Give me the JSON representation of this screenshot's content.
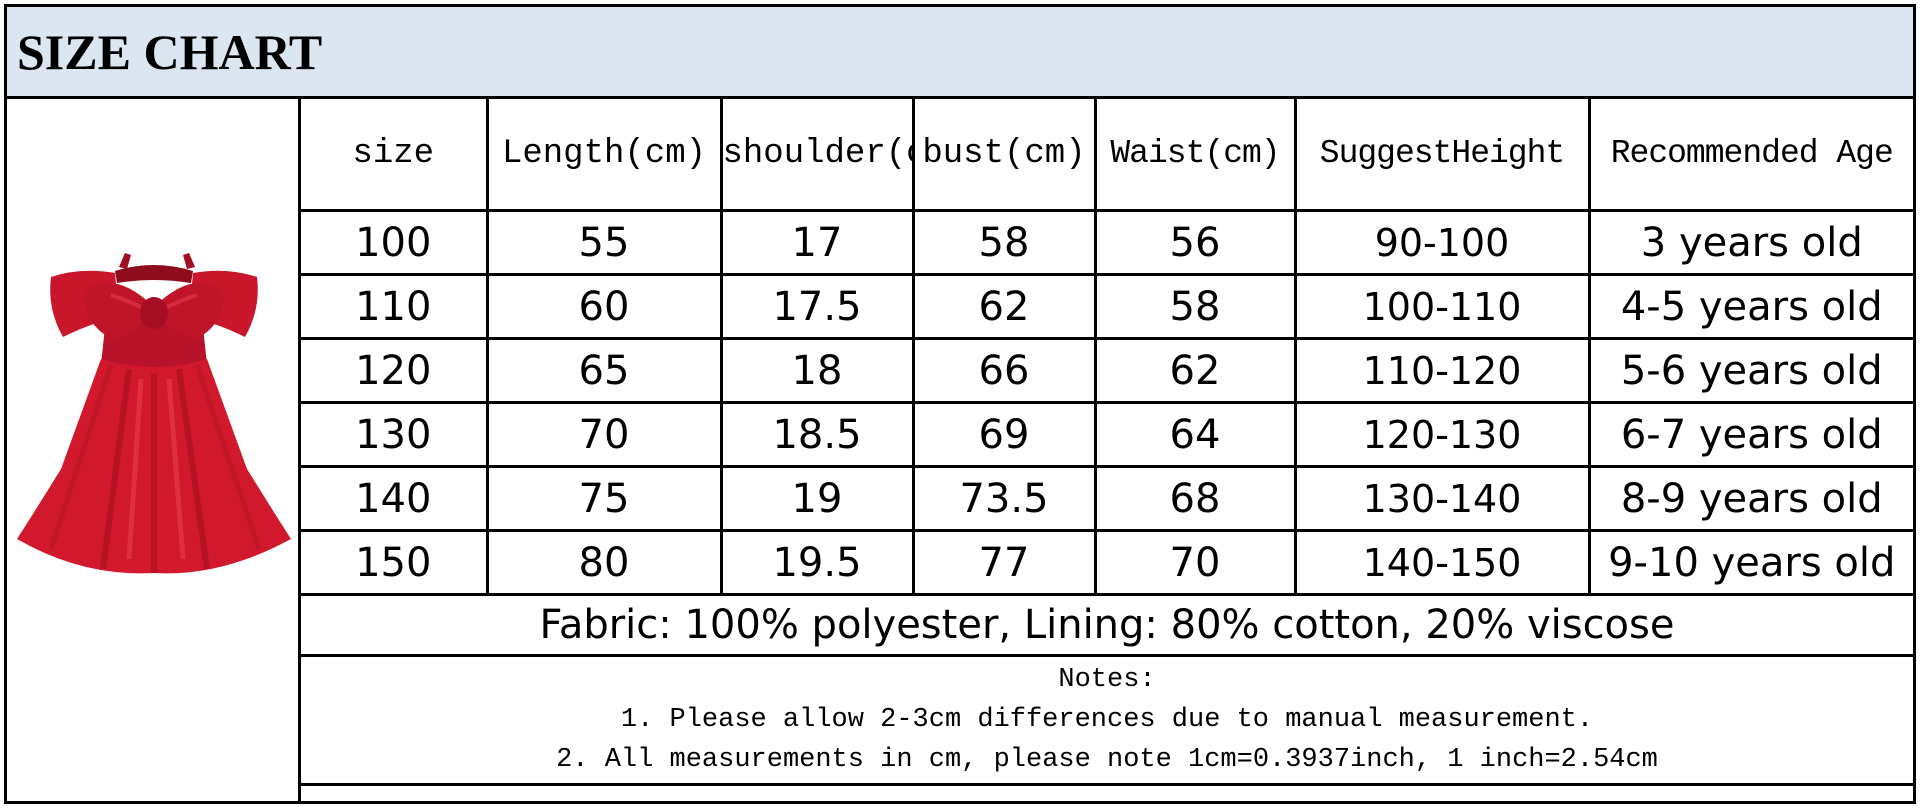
{
  "title": "SIZE CHART",
  "dress_image": "red-satin-bow-party-dress",
  "colors": {
    "banner": "#dbe6f1",
    "dress": "#d2182c"
  },
  "columns": [
    "size",
    "Length(cm)",
    "shoulder(cm)",
    "bust(cm)",
    "Waist(cm)",
    "SuggestHeight",
    "Recommended Age"
  ],
  "rows": [
    [
      "100",
      "55",
      "17",
      "58",
      "56",
      "90-100",
      "3 years old"
    ],
    [
      "110",
      "60",
      "17.5",
      "62",
      "58",
      "100-110",
      "4-5 years old"
    ],
    [
      "120",
      "65",
      "18",
      "66",
      "62",
      "110-120",
      "5-6 years old"
    ],
    [
      "130",
      "70",
      "18.5",
      "69",
      "64",
      "120-130",
      "6-7 years old"
    ],
    [
      "140",
      "75",
      "19",
      "73.5",
      "68",
      "130-140",
      "8-9 years old"
    ],
    [
      "150",
      "80",
      "19.5",
      "77",
      "70",
      "140-150",
      "9-10 years old"
    ]
  ],
  "fabric": "Fabric: 100% polyester,  Lining: 80% cotton, 20% viscose",
  "notes": {
    "heading": "Notes:",
    "lines": [
      "1. Please allow 2-3cm differences due to manual measurement.",
      "2. All measurements in cm, please note 1cm=0.3937inch, 1 inch=2.54cm"
    ]
  }
}
